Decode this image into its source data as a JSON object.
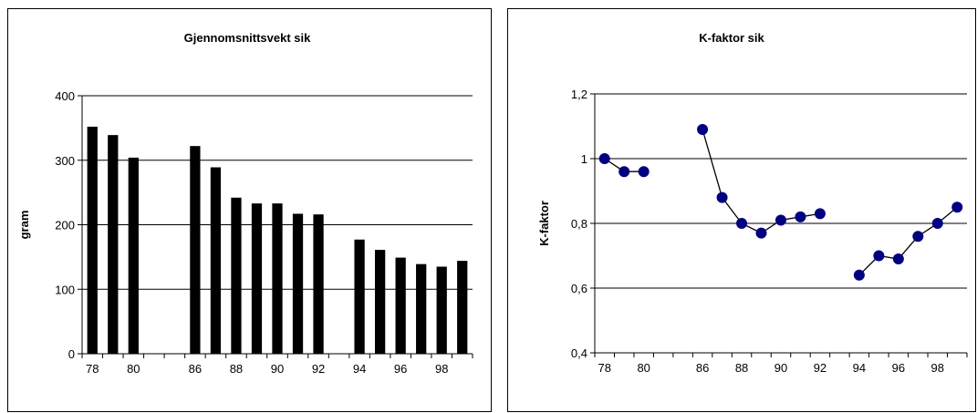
{
  "chart_data": [
    {
      "type": "bar",
      "title": "Gjennomsnittsvekt sik",
      "xlabel": "",
      "ylabel": "gram",
      "ylim": [
        0,
        400
      ],
      "yticks": [
        "0",
        "100",
        "200",
        "300",
        "400"
      ],
      "xticks": [
        "78",
        "80",
        "86",
        "88",
        "90",
        "92",
        "94",
        "96",
        "98"
      ],
      "categories": [
        "78",
        "79",
        "80",
        "81",
        "82",
        "86",
        "87",
        "88",
        "89",
        "90",
        "91",
        "92",
        "93",
        "94",
        "95",
        "96",
        "97",
        "98",
        "99"
      ],
      "values": [
        352,
        339,
        304,
        null,
        null,
        322,
        289,
        242,
        233,
        233,
        217,
        216,
        null,
        177,
        161,
        149,
        139,
        135,
        144
      ],
      "bar_color": "#000000",
      "grid": true
    },
    {
      "type": "line",
      "title": "K-faktor sik",
      "xlabel": "",
      "ylabel": "K-faktor",
      "ylim": [
        0.4,
        1.2
      ],
      "yticks": [
        "0,4",
        "0,6",
        "0,8",
        "1",
        "1,2"
      ],
      "xticks": [
        "78",
        "80",
        "86",
        "88",
        "90",
        "92",
        "94",
        "96",
        "98"
      ],
      "categories": [
        "78",
        "79",
        "80",
        "81",
        "82",
        "86",
        "87",
        "88",
        "89",
        "90",
        "91",
        "92",
        "93",
        "94",
        "95",
        "96",
        "97",
        "98",
        "99"
      ],
      "values": [
        1.0,
        0.96,
        0.96,
        null,
        null,
        1.09,
        0.88,
        0.8,
        0.77,
        0.81,
        0.82,
        0.83,
        null,
        0.64,
        0.7,
        0.69,
        0.76,
        0.8,
        0.85
      ],
      "marker_color": "#000080",
      "line_color": "#000000",
      "grid": true
    }
  ]
}
